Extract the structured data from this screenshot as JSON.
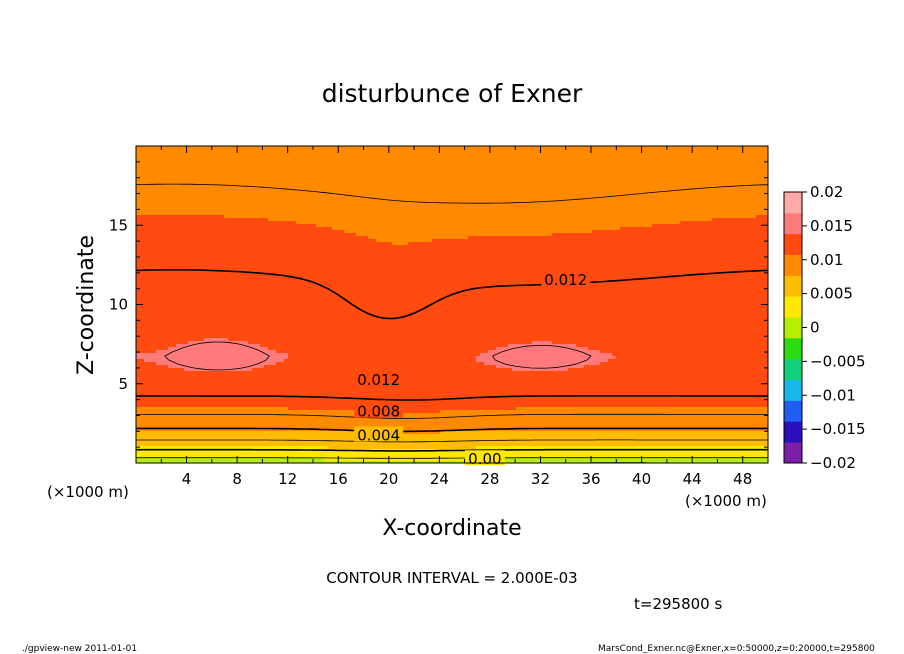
{
  "chart_data": {
    "type": "heatmap",
    "title": "disturbunce of Exner",
    "xlabel": "X-coordinate",
    "ylabel": "Z-coordinate",
    "x_unit_left": "(×1000 m)",
    "x_unit_right": "(×1000 m)",
    "xlim": [
      0,
      50
    ],
    "ylim": [
      0,
      20
    ],
    "x_ticks": [
      4,
      8,
      12,
      16,
      20,
      24,
      28,
      32,
      36,
      40,
      44,
      48
    ],
    "y_ticks": [
      5,
      10,
      15
    ],
    "colorbar": {
      "min": -0.02,
      "max": 0.02,
      "ticks": [
        "0.02",
        "0.015",
        "0.01",
        "0.005",
        "0",
        "−0.005",
        "−0.01",
        "−0.015",
        "−0.02"
      ],
      "colors": [
        "#7c1fa8",
        "#2a10b8",
        "#1f5ef0",
        "#19b8ec",
        "#12d07a",
        "#2adc10",
        "#b6f000",
        "#ffe800",
        "#ffbc00",
        "#ff8a00",
        "#ff4a10",
        "#ff7a7a",
        "#ffaaaa"
      ]
    },
    "contour_interval": 0.002,
    "contour_labels": [
      {
        "text": "0.012",
        "x": 34,
        "z": 11.6
      },
      {
        "text": "0.012",
        "x": 19.2,
        "z": 5.3
      },
      {
        "text": "0.008",
        "x": 19.2,
        "z": 3.3
      },
      {
        "text": "0.004",
        "x": 19.2,
        "z": 1.8
      },
      {
        "text": "0.00",
        "x": 27.6,
        "z": 0.3
      }
    ],
    "field_summary": {
      "description_values": "Exner disturbance field; ~0 near z=0 rising to max ~0.0145 near z≈7, decreasing to ~0.009 at top",
      "max_regions": [
        {
          "x_range": [
            3.5,
            9.5
          ],
          "z": 6.8,
          "value": 0.0142
        },
        {
          "x_range": [
            32,
            34
          ],
          "z": 6.7,
          "value": 0.0141
        }
      ]
    },
    "contour_interval_text": "CONTOUR INTERVAL = 2.000E-03",
    "time_text": "t=295800 s"
  },
  "footer": {
    "left": "./gpview-new   2011-01-01",
    "right": "MarsCond_Exner.nc@Exner,x=0:50000,z=0:20000,t=295800"
  }
}
